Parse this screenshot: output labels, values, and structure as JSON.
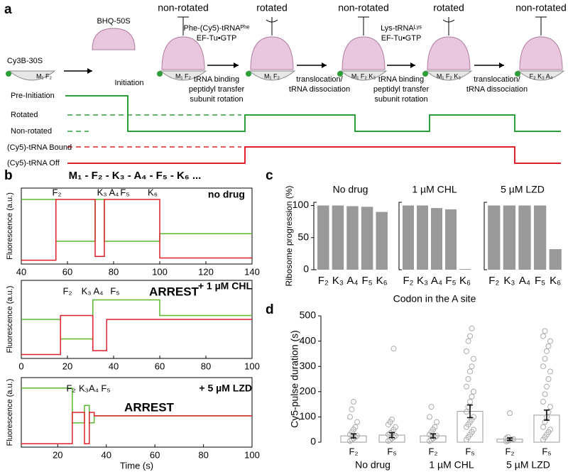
{
  "panel_labels": [
    "a",
    "b",
    "c",
    "d"
  ],
  "diagram": {
    "labels": [
      {
        "text": "non-rotated",
        "color": "#000000"
      },
      {
        "text": "rotated",
        "color": "#000000"
      },
      {
        "text": "non-rotated",
        "color": "#000000"
      },
      {
        "text": "rotated",
        "color": "#000000"
      },
      {
        "text": "non-rotated",
        "color": "#000000"
      },
      {
        "text": "BHQ-50S",
        "color": "#000000"
      },
      {
        "text": "Cy3B-30S",
        "color": "#2e9e3a"
      },
      {
        "text": "Initiation",
        "color": "#000000"
      },
      {
        "text": "Phe-(Cy5)-tRNAᴾʰᵉ",
        "color": "#000000"
      },
      {
        "text": "EF-Tu•GTP",
        "color": "#000000"
      },
      {
        "text": "tRNA binding",
        "color": "#000000"
      },
      {
        "text": "peptidyl transfer",
        "color": "#000000"
      },
      {
        "text": "subunit rotation",
        "color": "#000000"
      },
      {
        "text": "translocation/",
        "color": "#000000"
      },
      {
        "text": "tRNA dissociation",
        "color": "#000000"
      },
      {
        "text": "Lys-tRNAᴸʸˢ",
        "color": "#000000"
      },
      {
        "text": "EF-Tu•GTP",
        "color": "#000000"
      },
      {
        "text": "tRNA binding",
        "color": "#000000"
      },
      {
        "text": "peptidyl transfer",
        "color": "#000000"
      },
      {
        "text": "subunit rotation",
        "color": "#000000"
      },
      {
        "text": "translocation/",
        "color": "#000000"
      },
      {
        "text": "tRNA dissociation",
        "color": "#000000"
      },
      {
        "text": "Pre-Initiation",
        "color": "#2e9e3a"
      },
      {
        "text": "Rotated",
        "color": "#2e9e3a"
      },
      {
        "text": "Non-rotated",
        "color": "#2e9e3a"
      },
      {
        "text": "(Cy5)-tRNA Bound",
        "color": "#e0202a"
      },
      {
        "text": "(Cy5)-tRNA Off",
        "color": "#e0202a"
      },
      {
        "text": "M₁ F₂",
        "color": "#000000"
      },
      {
        "text": "M₁ F₂",
        "color": "#000000"
      },
      {
        "text": "M₁ F₂",
        "color": "#000000"
      },
      {
        "text": "M₁ F₂ K₃",
        "color": "#000000"
      },
      {
        "text": "M₁ F₂ K₃",
        "color": "#000000"
      },
      {
        "text": "F₂ K₃ A₄",
        "color": "#000000"
      }
    ]
  },
  "sequence": "M₁ - F₂ - K₃ - A₄ - F₅ - K₆ ...",
  "chart_data": [
    {
      "type": "line",
      "title": "no drug",
      "ylabel": "Fluorescence (a.u.)",
      "x": [
        40,
        55,
        55,
        72,
        72,
        76,
        76,
        100,
        100,
        140
      ],
      "series": [
        {
          "color": "#5cb82e",
          "values": [
            0.85,
            0.85,
            0.3,
            0.3,
            0.85,
            0.85,
            0.3,
            0.3,
            0.4,
            0.4
          ]
        },
        {
          "color": "#e0202a",
          "values": [
            0.05,
            0.05,
            0.85,
            0.85,
            0.1,
            0.1,
            0.85,
            0.85,
            0.08,
            0.08
          ]
        }
      ],
      "xlim": [
        40,
        140
      ],
      "xticks": [
        40,
        60,
        80,
        100,
        120,
        140
      ],
      "ylim": [
        0,
        1
      ],
      "annotations": [
        {
          "text": "F₂",
          "color": "#e0202a"
        },
        {
          "text": "K₃ A₄",
          "color": "#000000"
        },
        {
          "text": "F₅",
          "color": "#e0202a"
        },
        {
          "text": "K₆",
          "color": "#000000"
        }
      ]
    },
    {
      "type": "line",
      "title": "+ 1 µM CHL",
      "ylabel": "Fluorescence (a.u.)",
      "x": [
        0,
        17,
        17,
        31,
        31,
        37,
        37,
        60,
        60,
        100
      ],
      "series": [
        {
          "color": "#5cb82e",
          "values": [
            0.5,
            0.5,
            0.25,
            0.25,
            0.75,
            0.75,
            0.75,
            0.75,
            0.55,
            0.55
          ]
        },
        {
          "color": "#e0202a",
          "values": [
            0.05,
            0.05,
            0.55,
            0.55,
            0.1,
            0.1,
            0.5,
            0.5,
            0.5,
            0.5
          ]
        }
      ],
      "xlim": [
        0,
        100
      ],
      "xticks": [
        0,
        20,
        40,
        60,
        80,
        100
      ],
      "ylim": [
        0,
        1
      ],
      "annotations": [
        {
          "text": "F₂",
          "color": "#e0202a"
        },
        {
          "text": "K₃ A₄",
          "color": "#000000"
        },
        {
          "text": "F₅",
          "color": "#e0202a"
        },
        {
          "text": "ARREST",
          "color": "#c8102e"
        }
      ]
    },
    {
      "type": "line",
      "title": "+ 5 µM LZD",
      "ylabel": "Fluorescence (a.u.)",
      "xlabel": "Time (s)",
      "x": [
        5,
        26,
        26,
        31,
        31,
        33,
        33,
        35,
        35,
        100
      ],
      "series": [
        {
          "color": "#5cb82e",
          "values": [
            0.85,
            0.85,
            0.35,
            0.35,
            0.6,
            0.6,
            0.35,
            0.35,
            0.45,
            0.45
          ]
        },
        {
          "color": "#e0202a",
          "values": [
            0.05,
            0.05,
            0.5,
            0.5,
            0.05,
            0.05,
            0.5,
            0.5,
            0.45,
            0.45
          ]
        }
      ],
      "xlim": [
        5,
        100
      ],
      "xticks": [
        20,
        40,
        60,
        80,
        100
      ],
      "ylim": [
        0,
        1
      ],
      "annotations": [
        {
          "text": "F₂",
          "color": "#e0202a"
        },
        {
          "text": "K₃A₄",
          "color": "#000000"
        },
        {
          "text": "F₅",
          "color": "#e0202a"
        },
        {
          "text": "ARREST",
          "color": "#c8102e"
        }
      ]
    },
    {
      "type": "bar",
      "title": "No drug",
      "ylabel": "Ribosome progression (%)",
      "categories": [
        "F₂",
        "K₃",
        "A₄",
        "F₅",
        "K₆"
      ],
      "values": [
        100,
        100,
        99,
        98,
        90
      ],
      "color": "#999999",
      "ylim": [
        0,
        105
      ],
      "yticks": [
        0,
        50,
        100
      ]
    },
    {
      "type": "bar",
      "title": "1 µM CHL",
      "xlabel": "Codon in the A site",
      "categories": [
        "F₂",
        "K₃",
        "A₄",
        "F₅",
        "K₆"
      ],
      "values": [
        100,
        100,
        96,
        94,
        1
      ],
      "color": "#999999",
      "ylim": [
        0,
        105
      ]
    },
    {
      "type": "bar",
      "title": "5 µM LZD",
      "categories": [
        "F₂",
        "K₃",
        "A₄",
        "F₅",
        "K₆"
      ],
      "values": [
        100,
        100,
        100,
        100,
        32
      ],
      "color": "#999999",
      "ylim": [
        0,
        105
      ]
    },
    {
      "type": "errorbar",
      "ylabel": "Cy5-pulse duration (s)",
      "categories": [
        "F₂",
        "F₅",
        "F₂",
        "F₅",
        "F₂",
        "F₅"
      ],
      "groups": [
        "No drug",
        "1 µM CHL",
        "5 µM LZD"
      ],
      "values": [
        25,
        28,
        25,
        122,
        12,
        107
      ],
      "errors": [
        8,
        10,
        8,
        25,
        5,
        20
      ],
      "points": [
        [
          5,
          10,
          15,
          20,
          25,
          30,
          40,
          50,
          60,
          80,
          100,
          130,
          160
        ],
        [
          5,
          10,
          15,
          20,
          25,
          30,
          35,
          40,
          50,
          60,
          70,
          80,
          90,
          370
        ],
        [
          5,
          10,
          15,
          20,
          25,
          30,
          40,
          50,
          60,
          80,
          100,
          140
        ],
        [
          10,
          20,
          30,
          40,
          50,
          60,
          70,
          80,
          90,
          100,
          120,
          140,
          160,
          180,
          200,
          220,
          250,
          280,
          300,
          330,
          360,
          400,
          420,
          450
        ],
        [
          3,
          5,
          8,
          10,
          12,
          15,
          20,
          115
        ],
        [
          10,
          20,
          30,
          40,
          50,
          60,
          80,
          100,
          120,
          140,
          160,
          190,
          220,
          250,
          280,
          300,
          330,
          360,
          380,
          400,
          420,
          440
        ]
      ],
      "ylim": [
        0,
        500
      ],
      "yticks": [
        0,
        100,
        200,
        300,
        400,
        500
      ]
    }
  ]
}
